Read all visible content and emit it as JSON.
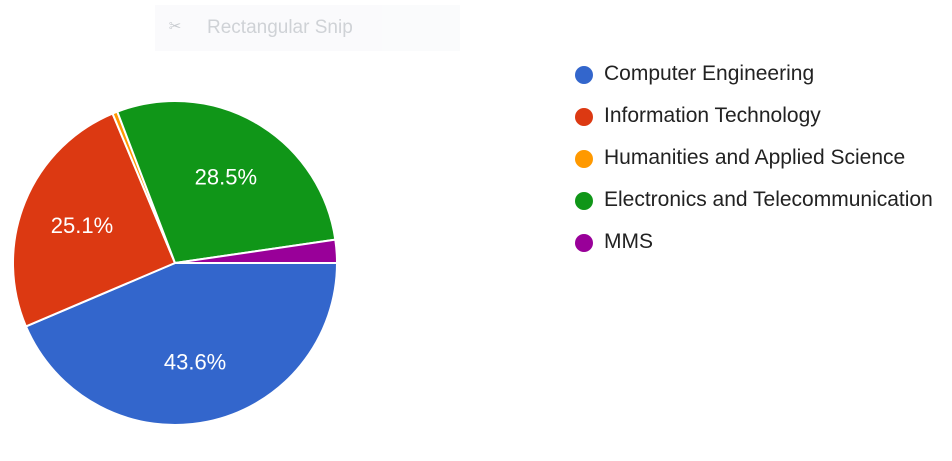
{
  "snip_tool": {
    "label": "Rectangular Snip",
    "icon": "scissors-icon"
  },
  "chart_data": {
    "type": "pie",
    "title": "",
    "categories": [
      "Computer Engineering",
      "Information Technology",
      "Humanities and Applied Science",
      "Electronics and Telecommunication",
      "MMS"
    ],
    "values": [
      43.6,
      25.1,
      0.5,
      28.5,
      2.3
    ],
    "colors": [
      "#3366cc",
      "#dc3912",
      "#ff9900",
      "#109618",
      "#990099"
    ],
    "slice_labels": [
      "43.6%",
      "25.1%",
      "",
      "28.5%",
      ""
    ],
    "start_angle_deg": 90,
    "direction": "clockwise",
    "legend_position": "right",
    "label_color": "#ffffff"
  }
}
